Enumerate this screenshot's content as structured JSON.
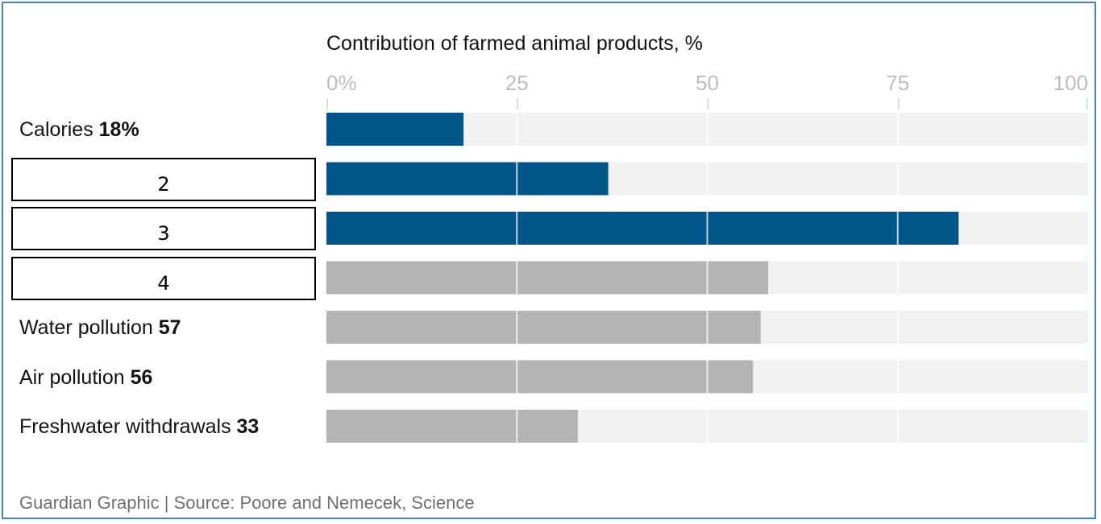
{
  "chart_data": {
    "type": "bar",
    "orientation": "horizontal",
    "title": "Contribution of farmed animal products, %",
    "xlim": [
      0,
      100
    ],
    "ticks": [
      {
        "value": 0,
        "label": "0%"
      },
      {
        "value": 25,
        "label": "25"
      },
      {
        "value": 50,
        "label": "50"
      },
      {
        "value": 75,
        "label": "75"
      },
      {
        "value": 100,
        "label": "100"
      }
    ],
    "bars": [
      {
        "name": "Calories",
        "value_label": "18%",
        "value": 18,
        "color": "#005689",
        "masked_label": null
      },
      {
        "name": null,
        "value_label": null,
        "value": 37,
        "color": "#005689",
        "masked_label": "2"
      },
      {
        "name": null,
        "value_label": null,
        "value": 83,
        "color": "#005689",
        "masked_label": "3"
      },
      {
        "name": null,
        "value_label": null,
        "value": 58,
        "color": "#b3b3b3",
        "masked_label": "4"
      },
      {
        "name": "Water pollution",
        "value_label": "57",
        "value": 57,
        "color": "#b3b3b3",
        "masked_label": null
      },
      {
        "name": "Air pollution",
        "value_label": "56",
        "value": 56,
        "color": "#b3b3b3",
        "masked_label": null
      },
      {
        "name": "Freshwater withdrawals",
        "value_label": "33",
        "value": 33,
        "color": "#b3b3b3",
        "masked_label": null
      }
    ],
    "track_color": "#f1f1f1",
    "grid": true,
    "source": "Guardian Graphic | Source: Poore and Nemecek, Science"
  }
}
